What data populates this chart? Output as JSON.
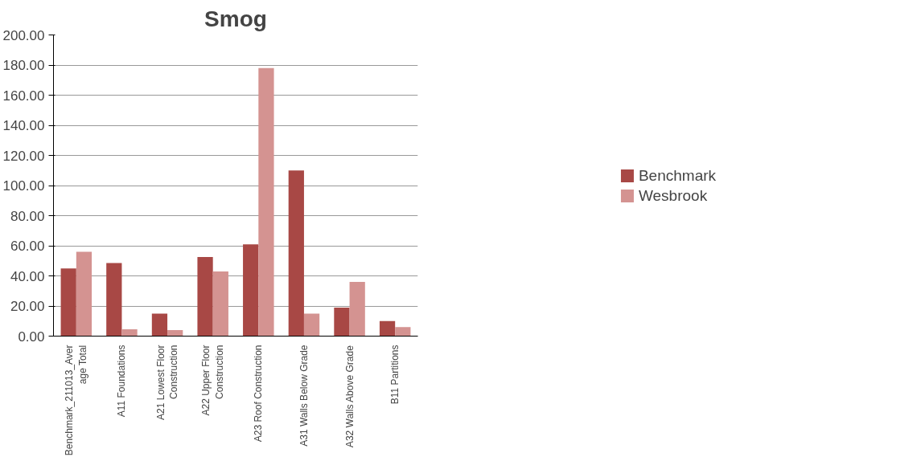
{
  "chart_data": {
    "type": "bar",
    "title": "Smog",
    "categories": [
      "Benchmark_211013_Average Total",
      "A11 Foundations",
      "A21 Lowest Floor Construction",
      "A22 Upper Floor Construction",
      "A23 Roof Construction",
      "A31 Walls Below Grade",
      "A32 Walls Above Grade",
      "B11 Partitions"
    ],
    "series": [
      {
        "name": "Benchmark",
        "color": "#a84845",
        "values": [
          45,
          48.5,
          15,
          52.5,
          61,
          110,
          19,
          10
        ]
      },
      {
        "name": "Wesbrook",
        "color": "#d49391",
        "values": [
          56,
          4.5,
          4,
          43,
          178,
          15,
          36,
          6
        ]
      }
    ],
    "ylim": [
      0,
      200
    ],
    "yticks": [
      {
        "value": 0,
        "label": "0.00"
      },
      {
        "value": 20,
        "label": "20.00"
      },
      {
        "value": 40,
        "label": "40.00"
      },
      {
        "value": 60,
        "label": "60.00"
      },
      {
        "value": 80,
        "label": "80.00"
      },
      {
        "value": 100,
        "label": "100.00"
      },
      {
        "value": 120,
        "label": "120.00"
      },
      {
        "value": 140,
        "label": "140.00"
      },
      {
        "value": 160,
        "label": "160.00"
      },
      {
        "value": 180,
        "label": "180.00"
      },
      {
        "value": 200,
        "label": "200.00"
      }
    ],
    "grid": "y",
    "legend": "right"
  }
}
